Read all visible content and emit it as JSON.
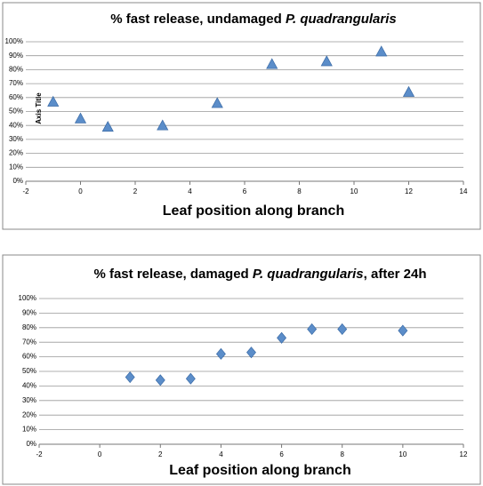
{
  "chart_data": [
    {
      "type": "scatter",
      "title": [
        {
          "text": "% fast release, undamaged ",
          "italic": false
        },
        {
          "text": "P. quadrangularis",
          "italic": true
        }
      ],
      "xlabel": "Leaf position along branch",
      "ylabel": "Axis Title",
      "x": [
        -1,
        0,
        1,
        3,
        5,
        7,
        9,
        11,
        12
      ],
      "values": [
        57,
        45,
        39,
        40,
        56,
        84,
        86,
        93,
        64
      ],
      "marker": "triangle",
      "color": "#5b8dc9",
      "xlim": [
        -2,
        14
      ],
      "xticks": [
        -2,
        0,
        2,
        4,
        6,
        8,
        10,
        12,
        14
      ],
      "ylim": [
        0,
        100
      ],
      "yticks": [
        {
          "value": 0,
          "label": "0%"
        },
        {
          "value": 10,
          "label": "10%"
        },
        {
          "value": 20,
          "label": "20%"
        },
        {
          "value": 30,
          "label": "30%"
        },
        {
          "value": 40,
          "label": "40%"
        },
        {
          "value": 50,
          "label": "50%"
        },
        {
          "value": 60,
          "label": "60%"
        },
        {
          "value": 70,
          "label": "70%"
        },
        {
          "value": 80,
          "label": "80%"
        },
        {
          "value": 90,
          "label": "90%"
        },
        {
          "value": 100,
          "label": "100%"
        }
      ],
      "grid": true
    },
    {
      "type": "scatter",
      "title": [
        {
          "text": "% fast release, damaged ",
          "italic": false
        },
        {
          "text": "P. quadrangularis",
          "italic": true
        },
        {
          "text": ", after 24h",
          "italic": false
        }
      ],
      "xlabel": "Leaf position along branch",
      "x": [
        1,
        2,
        3,
        4,
        5,
        6,
        7,
        8,
        10
      ],
      "values": [
        46,
        44,
        45,
        62,
        63,
        73,
        79,
        79,
        78
      ],
      "marker": "diamond",
      "color": "#5b8dc9",
      "xlim": [
        -2,
        12
      ],
      "xticks": [
        -2,
        0,
        2,
        4,
        6,
        8,
        10,
        12
      ],
      "ylim": [
        0,
        100
      ],
      "yticks": [
        {
          "value": 0,
          "label": "0%"
        },
        {
          "value": 10,
          "label": "10%"
        },
        {
          "value": 20,
          "label": "20%"
        },
        {
          "value": 30,
          "label": "30%"
        },
        {
          "value": 40,
          "label": "40%"
        },
        {
          "value": 50,
          "label": "50%"
        },
        {
          "value": 60,
          "label": "60%"
        },
        {
          "value": 70,
          "label": "70%"
        },
        {
          "value": 80,
          "label": "80%"
        },
        {
          "value": 90,
          "label": "90%"
        },
        {
          "value": 100,
          "label": "100%"
        }
      ],
      "grid": true
    }
  ]
}
